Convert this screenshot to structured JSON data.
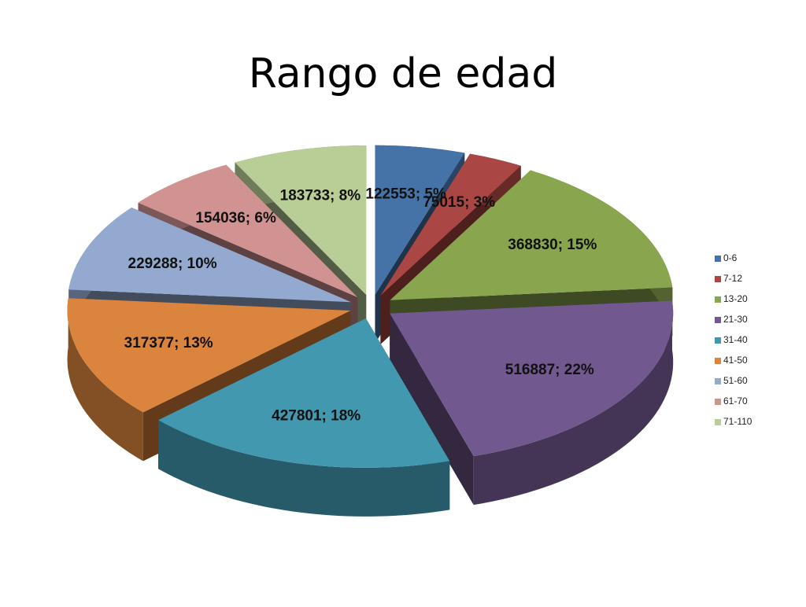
{
  "chart_data": {
    "type": "pie",
    "title": "Rango de edad",
    "categories": [
      "0-6",
      "7-12",
      "13-20",
      "21-30",
      "31-40",
      "41-50",
      "51-60",
      "61-70",
      "71-110"
    ],
    "values": [
      122553,
      75015,
      368830,
      516887,
      427801,
      317377,
      229288,
      154036,
      183733
    ],
    "value_labels": [
      "122553; 5%",
      "75015; 3%",
      "368830; 15%",
      "516887; 22%",
      "427801; 18%",
      "317377; 13%",
      "229288; 10%",
      "154036; 6%",
      "183733; 8%"
    ],
    "colors": [
      "#4572a7",
      "#aa4643",
      "#89a54e",
      "#71588f",
      "#4198af",
      "#db843d",
      "#93a9cf",
      "#d19392",
      "#b9cd96"
    ],
    "legend": "right"
  }
}
